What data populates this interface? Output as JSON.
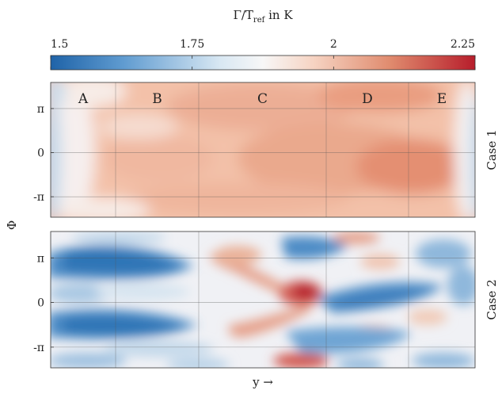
{
  "chart_data": [
    {
      "type": "colorbar",
      "title": "Γ/T",
      "title_subscript": "ref",
      "title_suffix": " in K",
      "ticks": [
        "1.5",
        "1.75",
        "2",
        "2.25"
      ],
      "tick_values": [
        1.5,
        1.75,
        2.0,
        2.25
      ],
      "range": [
        1.5,
        2.25
      ],
      "colors": [
        "#1f63a8",
        "#5f9bd0",
        "#d9e8f3",
        "#f7f7f7",
        "#f6d3c2",
        "#e08b6e",
        "#b71d2b"
      ]
    },
    {
      "type": "heatmap",
      "panel": "Case 1",
      "row_label": "Case 1",
      "ylabel": "Φ",
      "xlabel": "",
      "yticks": [
        "π",
        "0",
        "-π"
      ],
      "ytick_values": [
        3.14159,
        0,
        -3.14159
      ],
      "ylim": [
        -4.6,
        5.0
      ],
      "regions": [
        "A",
        "B",
        "C",
        "D",
        "E"
      ],
      "grid": true,
      "description_values": {
        "overall_level": 2.0,
        "edge_level": 1.75,
        "max_region": "D"
      }
    },
    {
      "type": "heatmap",
      "panel": "Case 2",
      "row_label": "Case 2",
      "ylabel": "Φ",
      "xlabel": "y →",
      "yticks": [
        "π",
        "0",
        "-π"
      ],
      "ytick_values": [
        3.14159,
        0,
        -3.14159
      ],
      "ylim": [
        -4.6,
        5.0
      ],
      "grid": true,
      "description_values": {
        "min_level": 1.5,
        "max_level": 2.25
      }
    }
  ],
  "labels": {
    "phi_axis": "Φ",
    "x_axis": "y →",
    "case1": "Case 1",
    "case2": "Case 2"
  }
}
